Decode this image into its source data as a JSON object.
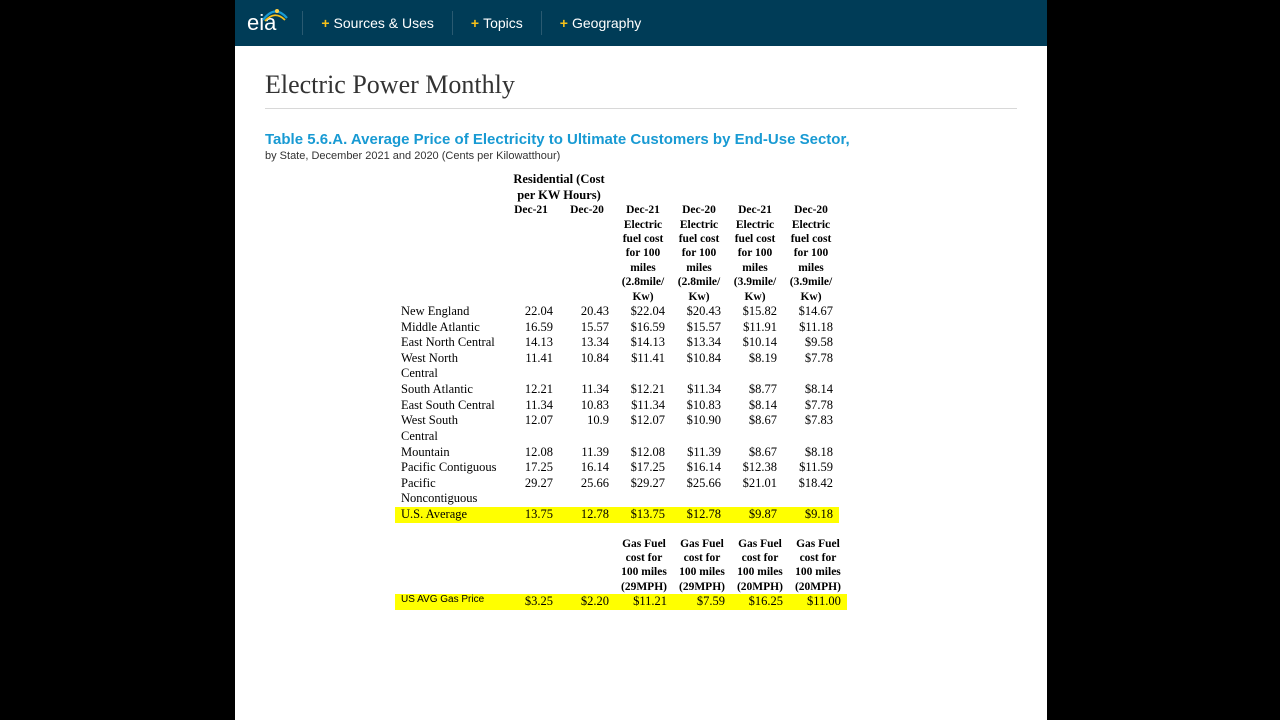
{
  "nav": {
    "logo_text": "eia",
    "items": [
      "Sources & Uses",
      "Topics",
      "Geography"
    ]
  },
  "page_title": "Electric Power Monthly",
  "table": {
    "title": "Table 5.6.A. Average Price of Electricity to Ultimate Customers by End-Use Sector,",
    "subtitle": "by State, December 2021 and 2020 (Cents per Kilowatthour)",
    "group_header": "Residential (Cost per KW Hours)",
    "columns": [
      "Dec-21",
      "Dec-20",
      "Dec-21 Electric fuel cost for 100 miles (2.8mile/ Kw)",
      "Dec-20 Electric fuel cost for 100 miles (2.8mile/ Kw)",
      "Dec-21 Electric fuel cost for 100 miles (3.9mile/ Kw)",
      "Dec-20 Electric fuel cost for 100 miles (3.9mile/ Kw)"
    ],
    "rows": [
      {
        "region": "New England",
        "d21": "22.04",
        "d20": "20.43",
        "c28_21": "$22.04",
        "c28_20": "$20.43",
        "c39_21": "$15.82",
        "c39_20": "$14.67"
      },
      {
        "region": "Middle Atlantic",
        "d21": "16.59",
        "d20": "15.57",
        "c28_21": "$16.59",
        "c28_20": "$15.57",
        "c39_21": "$11.91",
        "c39_20": "$11.18"
      },
      {
        "region": "East North Central",
        "d21": "14.13",
        "d20": "13.34",
        "c28_21": "$14.13",
        "c28_20": "$13.34",
        "c39_21": "$10.14",
        "c39_20": "$9.58"
      },
      {
        "region": "West North Central",
        "d21": "11.41",
        "d20": "10.84",
        "c28_21": "$11.41",
        "c28_20": "$10.84",
        "c39_21": "$8.19",
        "c39_20": "$7.78"
      },
      {
        "region": "South Atlantic",
        "d21": "12.21",
        "d20": "11.34",
        "c28_21": "$12.21",
        "c28_20": "$11.34",
        "c39_21": "$8.77",
        "c39_20": "$8.14"
      },
      {
        "region": "East South Central",
        "d21": "11.34",
        "d20": "10.83",
        "c28_21": "$11.34",
        "c28_20": "$10.83",
        "c39_21": "$8.14",
        "c39_20": "$7.78"
      },
      {
        "region": "West South Central",
        "d21": "12.07",
        "d20": "10.9",
        "c28_21": "$12.07",
        "c28_20": "$10.90",
        "c39_21": "$8.67",
        "c39_20": "$7.83"
      },
      {
        "region": "Mountain",
        "d21": "12.08",
        "d20": "11.39",
        "c28_21": "$12.08",
        "c28_20": "$11.39",
        "c39_21": "$8.67",
        "c39_20": "$8.18"
      },
      {
        "region": "Pacific Contiguous",
        "d21": "17.25",
        "d20": "16.14",
        "c28_21": "$17.25",
        "c28_20": "$16.14",
        "c39_21": "$12.38",
        "c39_20": "$11.59"
      },
      {
        "region": "Pacific Noncontiguous",
        "d21": "29.27",
        "d20": "25.66",
        "c28_21": "$29.27",
        "c28_20": "$25.66",
        "c39_21": "$21.01",
        "c39_20": "$18.42"
      },
      {
        "region": "U.S. Average",
        "d21": "13.75",
        "d20": "12.78",
        "c28_21": "$13.75",
        "c28_20": "$12.78",
        "c39_21": "$9.87",
        "c39_20": "$9.18",
        "highlight": true
      }
    ]
  },
  "gas": {
    "columns": [
      "Gas Fuel cost for 100 miles (29MPH)",
      "Gas Fuel cost for 100 miles (29MPH)",
      "Gas Fuel cost for 100 miles (20MPH)",
      "Gas Fuel cost for 100 miles (20MPH)"
    ],
    "label": "US AVG Gas Price",
    "d21": "$3.25",
    "d20": "$2.20",
    "g29_21": "$11.21",
    "g29_20": "$7.59",
    "g20_21": "$16.25",
    "g20_20": "$11.00"
  },
  "colors": {
    "nav_bg": "#003c57",
    "accent": "#f7c11a",
    "link_blue": "#189ad3",
    "highlight": "#ffff00"
  }
}
